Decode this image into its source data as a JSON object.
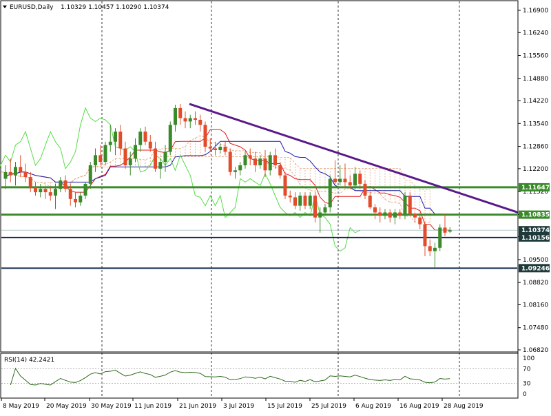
{
  "header": {
    "symbol": "EURUSD,Daily",
    "ohlc": "1.10329 1.10457 1.10290 1.10374",
    "collapse_icon": "triangle-down-icon"
  },
  "rsi_panel": {
    "label": "RSI(14) 42.2421",
    "levels": [
      "100",
      "70",
      "30",
      "0"
    ]
  },
  "price_axis": {
    "labels": [
      "1.16900",
      "1.16240",
      "1.15560",
      "1.14880",
      "1.14220",
      "1.13540",
      "1.12860",
      "1.12200",
      "1.11520",
      "1.10840",
      "1.10180",
      "1.09500",
      "1.08820",
      "1.08160",
      "1.07480",
      "1.06820"
    ]
  },
  "date_axis": {
    "labels": [
      "8 May 2019",
      "20 May 2019",
      "30 May 2019",
      "11 Jun 2019",
      "21 Jun 2019",
      "3 Jul 2019",
      "15 Jul 2019",
      "25 Jul 2019",
      "6 Aug 2019",
      "16 Aug 2019",
      "28 Aug 2019"
    ]
  },
  "horizontal_levels": [
    {
      "label": "1.11647",
      "value": 1.11647,
      "color": "#3a8a2a"
    },
    {
      "label": "1.10835",
      "value": 1.10835,
      "color": "#3a8a2a"
    },
    {
      "label": "1.10374",
      "value": 1.10374,
      "color": "#13294b"
    },
    {
      "label": "1.10156",
      "value": 1.10156,
      "color": "#13294b"
    },
    {
      "label": "1.09246",
      "value": 1.09246,
      "color": "#13294b"
    }
  ],
  "colors": {
    "bull": "#3a8a2a",
    "bear": "#e24c2a",
    "tenkan": "#e31a1a",
    "kijun": "#1a1aa8",
    "chikou": "#55dd44",
    "cloud": "#e6a07a",
    "trendline": "#5a1a8a",
    "support": "#3a8a2a",
    "dark_level": "#1e3a3a",
    "rsi": "#2d6a1a"
  },
  "chart_data": {
    "type": "candlestick",
    "symbol": "EURUSD",
    "timeframe": "Daily",
    "ylim": [
      1.0682,
      1.169
    ],
    "candles": [
      {
        "o": 1.119,
        "h": 1.123,
        "l": 1.116,
        "c": 1.121
      },
      {
        "o": 1.121,
        "h": 1.125,
        "l": 1.118,
        "c": 1.12
      },
      {
        "o": 1.12,
        "h": 1.124,
        "l": 1.117,
        "c": 1.1225
      },
      {
        "o": 1.1225,
        "h": 1.126,
        "l": 1.1195,
        "c": 1.121
      },
      {
        "o": 1.121,
        "h": 1.1235,
        "l": 1.118,
        "c": 1.1195
      },
      {
        "o": 1.1195,
        "h": 1.121,
        "l": 1.115,
        "c": 1.1165
      },
      {
        "o": 1.1165,
        "h": 1.118,
        "l": 1.114,
        "c": 1.115
      },
      {
        "o": 1.115,
        "h": 1.1175,
        "l": 1.1135,
        "c": 1.116
      },
      {
        "o": 1.116,
        "h": 1.117,
        "l": 1.113,
        "c": 1.115
      },
      {
        "o": 1.115,
        "h": 1.1165,
        "l": 1.1125,
        "c": 1.114
      },
      {
        "o": 1.114,
        "h": 1.1175,
        "l": 1.11,
        "c": 1.116
      },
      {
        "o": 1.116,
        "h": 1.1195,
        "l": 1.115,
        "c": 1.1185
      },
      {
        "o": 1.1185,
        "h": 1.12,
        "l": 1.115,
        "c": 1.116
      },
      {
        "o": 1.116,
        "h": 1.1175,
        "l": 1.111,
        "c": 1.113
      },
      {
        "o": 1.113,
        "h": 1.115,
        "l": 1.1105,
        "c": 1.112
      },
      {
        "o": 1.112,
        "h": 1.115,
        "l": 1.111,
        "c": 1.114
      },
      {
        "o": 1.114,
        "h": 1.118,
        "l": 1.113,
        "c": 1.1175
      },
      {
        "o": 1.1175,
        "h": 1.124,
        "l": 1.116,
        "c": 1.123
      },
      {
        "o": 1.123,
        "h": 1.128,
        "l": 1.121,
        "c": 1.126
      },
      {
        "o": 1.126,
        "h": 1.129,
        "l": 1.123,
        "c": 1.124
      },
      {
        "o": 1.124,
        "h": 1.13,
        "l": 1.123,
        "c": 1.129
      },
      {
        "o": 1.129,
        "h": 1.135,
        "l": 1.127,
        "c": 1.13
      },
      {
        "o": 1.13,
        "h": 1.134,
        "l": 1.126,
        "c": 1.133
      },
      {
        "o": 1.133,
        "h": 1.135,
        "l": 1.126,
        "c": 1.128
      },
      {
        "o": 1.128,
        "h": 1.13,
        "l": 1.122,
        "c": 1.123
      },
      {
        "o": 1.123,
        "h": 1.127,
        "l": 1.12,
        "c": 1.125
      },
      {
        "o": 1.125,
        "h": 1.131,
        "l": 1.124,
        "c": 1.129
      },
      {
        "o": 1.129,
        "h": 1.134,
        "l": 1.127,
        "c": 1.133
      },
      {
        "o": 1.133,
        "h": 1.1345,
        "l": 1.129,
        "c": 1.13
      },
      {
        "o": 1.13,
        "h": 1.132,
        "l": 1.127,
        "c": 1.128
      },
      {
        "o": 1.128,
        "h": 1.13,
        "l": 1.121,
        "c": 1.122
      },
      {
        "o": 1.122,
        "h": 1.125,
        "l": 1.119,
        "c": 1.124
      },
      {
        "o": 1.124,
        "h": 1.129,
        "l": 1.121,
        "c": 1.127
      },
      {
        "o": 1.127,
        "h": 1.136,
        "l": 1.126,
        "c": 1.135
      },
      {
        "o": 1.135,
        "h": 1.141,
        "l": 1.133,
        "c": 1.14
      },
      {
        "o": 1.14,
        "h": 1.1412,
        "l": 1.135,
        "c": 1.137
      },
      {
        "o": 1.137,
        "h": 1.139,
        "l": 1.134,
        "c": 1.136
      },
      {
        "o": 1.136,
        "h": 1.138,
        "l": 1.134,
        "c": 1.137
      },
      {
        "o": 1.137,
        "h": 1.139,
        "l": 1.135,
        "c": 1.1365
      },
      {
        "o": 1.1365,
        "h": 1.138,
        "l": 1.133,
        "c": 1.135
      },
      {
        "o": 1.135,
        "h": 1.136,
        "l": 1.127,
        "c": 1.1285
      },
      {
        "o": 1.1285,
        "h": 1.131,
        "l": 1.127,
        "c": 1.128
      },
      {
        "o": 1.128,
        "h": 1.13,
        "l": 1.126,
        "c": 1.1275
      },
      {
        "o": 1.1275,
        "h": 1.1295,
        "l": 1.1265,
        "c": 1.1285
      },
      {
        "o": 1.1285,
        "h": 1.13,
        "l": 1.126,
        "c": 1.127
      },
      {
        "o": 1.127,
        "h": 1.128,
        "l": 1.12,
        "c": 1.121
      },
      {
        "o": 1.121,
        "h": 1.1225,
        "l": 1.119,
        "c": 1.1215
      },
      {
        "o": 1.1215,
        "h": 1.124,
        "l": 1.12,
        "c": 1.123
      },
      {
        "o": 1.123,
        "h": 1.127,
        "l": 1.122,
        "c": 1.126
      },
      {
        "o": 1.126,
        "h": 1.128,
        "l": 1.123,
        "c": 1.125
      },
      {
        "o": 1.125,
        "h": 1.127,
        "l": 1.121,
        "c": 1.123
      },
      {
        "o": 1.123,
        "h": 1.126,
        "l": 1.122,
        "c": 1.125
      },
      {
        "o": 1.125,
        "h": 1.1275,
        "l": 1.1195,
        "c": 1.1215
      },
      {
        "o": 1.1215,
        "h": 1.127,
        "l": 1.12,
        "c": 1.126
      },
      {
        "o": 1.126,
        "h": 1.128,
        "l": 1.122,
        "c": 1.123
      },
      {
        "o": 1.123,
        "h": 1.124,
        "l": 1.119,
        "c": 1.12
      },
      {
        "o": 1.12,
        "h": 1.121,
        "l": 1.113,
        "c": 1.114
      },
      {
        "o": 1.114,
        "h": 1.1155,
        "l": 1.112,
        "c": 1.1135
      },
      {
        "o": 1.1135,
        "h": 1.115,
        "l": 1.11,
        "c": 1.111
      },
      {
        "o": 1.111,
        "h": 1.115,
        "l": 1.1095,
        "c": 1.114
      },
      {
        "o": 1.114,
        "h": 1.115,
        "l": 1.11,
        "c": 1.111
      },
      {
        "o": 1.111,
        "h": 1.115,
        "l": 1.11,
        "c": 1.114
      },
      {
        "o": 1.114,
        "h": 1.115,
        "l": 1.106,
        "c": 1.1075
      },
      {
        "o": 1.1075,
        "h": 1.1105,
        "l": 1.103,
        "c": 1.109
      },
      {
        "o": 1.109,
        "h": 1.1115,
        "l": 1.108,
        "c": 1.1105
      },
      {
        "o": 1.1105,
        "h": 1.12,
        "l": 1.109,
        "c": 1.119
      },
      {
        "o": 1.119,
        "h": 1.1245,
        "l": 1.117,
        "c": 1.118
      },
      {
        "o": 1.118,
        "h": 1.123,
        "l": 1.117,
        "c": 1.119
      },
      {
        "o": 1.119,
        "h": 1.1235,
        "l": 1.1165,
        "c": 1.118
      },
      {
        "o": 1.118,
        "h": 1.12,
        "l": 1.116,
        "c": 1.117
      },
      {
        "o": 1.117,
        "h": 1.1225,
        "l": 1.116,
        "c": 1.1205
      },
      {
        "o": 1.1205,
        "h": 1.1215,
        "l": 1.116,
        "c": 1.1175
      },
      {
        "o": 1.1175,
        "h": 1.1185,
        "l": 1.113,
        "c": 1.114
      },
      {
        "o": 1.114,
        "h": 1.115,
        "l": 1.11,
        "c": 1.1105
      },
      {
        "o": 1.1105,
        "h": 1.1115,
        "l": 1.107,
        "c": 1.109
      },
      {
        "o": 1.109,
        "h": 1.1105,
        "l": 1.106,
        "c": 1.108
      },
      {
        "o": 1.108,
        "h": 1.11,
        "l": 1.107,
        "c": 1.109
      },
      {
        "o": 1.109,
        "h": 1.11,
        "l": 1.106,
        "c": 1.1075
      },
      {
        "o": 1.1075,
        "h": 1.11,
        "l": 1.1055,
        "c": 1.109
      },
      {
        "o": 1.109,
        "h": 1.11,
        "l": 1.107,
        "c": 1.108
      },
      {
        "o": 1.108,
        "h": 1.115,
        "l": 1.107,
        "c": 1.114
      },
      {
        "o": 1.114,
        "h": 1.115,
        "l": 1.108,
        "c": 1.1085
      },
      {
        "o": 1.1085,
        "h": 1.109,
        "l": 1.106,
        "c": 1.1075
      },
      {
        "o": 1.1075,
        "h": 1.108,
        "l": 1.104,
        "c": 1.1055
      },
      {
        "o": 1.1055,
        "h": 1.106,
        "l": 1.096,
        "c": 1.099
      },
      {
        "o": 1.099,
        "h": 1.101,
        "l": 1.096,
        "c": 1.0975
      },
      {
        "o": 1.0975,
        "h": 1.1,
        "l": 1.0925,
        "c": 1.0985
      },
      {
        "o": 1.0985,
        "h": 1.1055,
        "l": 1.0975,
        "c": 1.1045
      },
      {
        "o": 1.1045,
        "h": 1.1085,
        "l": 1.102,
        "c": 1.103
      },
      {
        "o": 1.1033,
        "h": 1.1046,
        "l": 1.1029,
        "c": 1.1037
      }
    ],
    "trendline": {
      "from": 1.1412,
      "to": 1.109
    },
    "levels": [
      1.11647,
      1.10835,
      1.10156,
      1.09246
    ],
    "rsi": {
      "ylim": [
        0,
        100
      ],
      "levels": [
        70,
        30
      ],
      "last": 42.2421
    },
    "grid": "vertical dashed at month boundaries"
  }
}
